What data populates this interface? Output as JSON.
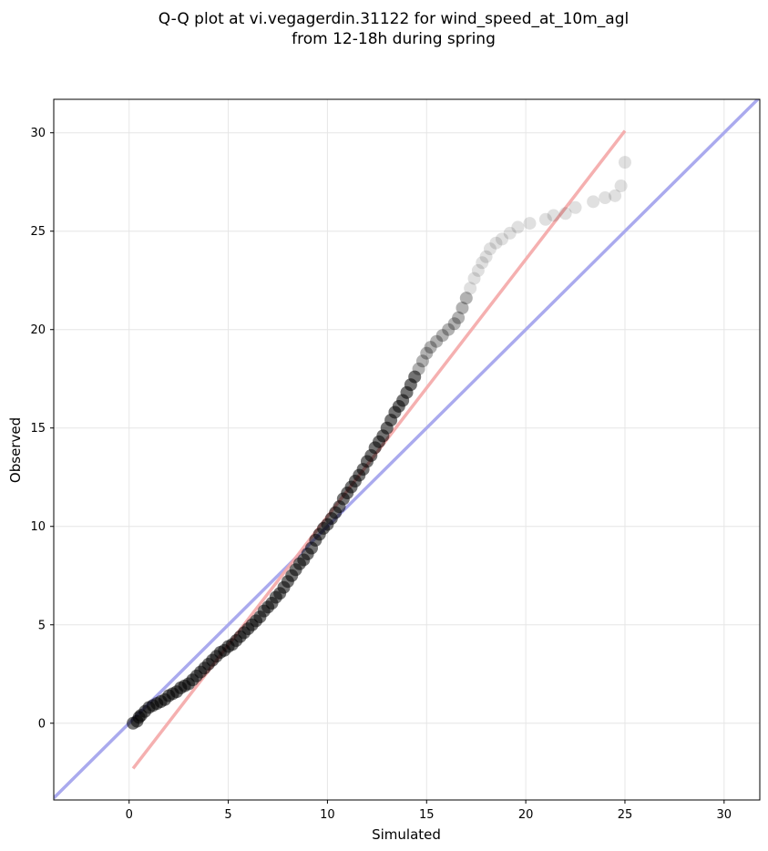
{
  "chart_data": {
    "type": "scatter",
    "title": [
      "Q-Q plot at vi.vegagerdin.31122 for wind_speed_at_10m_agl",
      "from 12-18h during spring"
    ],
    "xlabel": "Simulated",
    "ylabel": "Observed",
    "xlim": [
      -3.8,
      31.8
    ],
    "ylim": [
      -3.9,
      31.7
    ],
    "x_ticks": [
      0,
      5,
      10,
      15,
      20,
      25,
      30
    ],
    "y_ticks": [
      0,
      5,
      10,
      15,
      20,
      25,
      30
    ],
    "grid": true,
    "colors": {
      "points": "#000000",
      "identity_line": "#aaaaee",
      "fit_line": "#f4a7a7"
    },
    "reference_lines": [
      {
        "name": "identity",
        "x": [
          -3.8,
          31.8
        ],
        "y": [
          -3.8,
          31.8
        ]
      },
      {
        "name": "fit",
        "x": [
          0.2,
          25.0
        ],
        "y": [
          -2.3,
          30.1
        ]
      }
    ],
    "points": [
      [
        0.2,
        0.0
      ],
      [
        0.4,
        0.1
      ],
      [
        0.5,
        0.3
      ],
      [
        0.6,
        0.4
      ],
      [
        0.8,
        0.6
      ],
      [
        1.0,
        0.8
      ],
      [
        1.2,
        0.9
      ],
      [
        1.4,
        1.0
      ],
      [
        1.6,
        1.1
      ],
      [
        1.8,
        1.2
      ],
      [
        2.0,
        1.4
      ],
      [
        2.2,
        1.5
      ],
      [
        2.4,
        1.6
      ],
      [
        2.6,
        1.8
      ],
      [
        2.8,
        1.9
      ],
      [
        3.0,
        2.0
      ],
      [
        3.2,
        2.2
      ],
      [
        3.4,
        2.4
      ],
      [
        3.6,
        2.6
      ],
      [
        3.8,
        2.8
      ],
      [
        4.0,
        3.0
      ],
      [
        4.2,
        3.2
      ],
      [
        4.4,
        3.4
      ],
      [
        4.6,
        3.6
      ],
      [
        4.8,
        3.7
      ],
      [
        5.0,
        3.9
      ],
      [
        5.2,
        4.0
      ],
      [
        5.4,
        4.2
      ],
      [
        5.6,
        4.4
      ],
      [
        5.8,
        4.6
      ],
      [
        6.0,
        4.8
      ],
      [
        6.2,
        5.0
      ],
      [
        6.4,
        5.2
      ],
      [
        6.6,
        5.4
      ],
      [
        6.8,
        5.7
      ],
      [
        7.0,
        5.9
      ],
      [
        7.2,
        6.1
      ],
      [
        7.4,
        6.4
      ],
      [
        7.6,
        6.6
      ],
      [
        7.8,
        6.9
      ],
      [
        8.0,
        7.2
      ],
      [
        8.2,
        7.5
      ],
      [
        8.4,
        7.8
      ],
      [
        8.6,
        8.1
      ],
      [
        8.8,
        8.3
      ],
      [
        9.0,
        8.6
      ],
      [
        9.2,
        8.9
      ],
      [
        9.4,
        9.3
      ],
      [
        9.6,
        9.6
      ],
      [
        9.8,
        9.9
      ],
      [
        10.0,
        10.1
      ],
      [
        10.2,
        10.4
      ],
      [
        10.4,
        10.7
      ],
      [
        10.6,
        11.0
      ],
      [
        10.8,
        11.4
      ],
      [
        11.0,
        11.7
      ],
      [
        11.2,
        12.0
      ],
      [
        11.4,
        12.3
      ],
      [
        11.6,
        12.6
      ],
      [
        11.8,
        12.9
      ],
      [
        12.0,
        13.3
      ],
      [
        12.2,
        13.6
      ],
      [
        12.4,
        14.0
      ],
      [
        12.6,
        14.3
      ],
      [
        12.8,
        14.6
      ],
      [
        13.0,
        15.0
      ],
      [
        13.2,
        15.4
      ],
      [
        13.4,
        15.8
      ],
      [
        13.6,
        16.1
      ],
      [
        13.8,
        16.4
      ],
      [
        14.0,
        16.8
      ],
      [
        14.2,
        17.2
      ],
      [
        14.4,
        17.6
      ],
      [
        14.6,
        18.0
      ],
      [
        14.8,
        18.4
      ],
      [
        15.0,
        18.8
      ],
      [
        15.2,
        19.1
      ],
      [
        15.5,
        19.4
      ],
      [
        15.8,
        19.7
      ],
      [
        16.1,
        20.0
      ],
      [
        16.4,
        20.3
      ],
      [
        16.6,
        20.6
      ],
      [
        16.8,
        21.1
      ],
      [
        17.0,
        21.6
      ],
      [
        17.2,
        22.1
      ],
      [
        17.4,
        22.6
      ],
      [
        17.6,
        23.0
      ],
      [
        17.8,
        23.4
      ],
      [
        18.0,
        23.7
      ],
      [
        18.2,
        24.1
      ],
      [
        18.5,
        24.4
      ],
      [
        18.8,
        24.6
      ],
      [
        19.2,
        24.9
      ],
      [
        19.6,
        25.2
      ],
      [
        20.2,
        25.4
      ],
      [
        21.0,
        25.6
      ],
      [
        21.4,
        25.8
      ],
      [
        22.0,
        25.9
      ],
      [
        22.5,
        26.2
      ],
      [
        23.4,
        26.5
      ],
      [
        24.0,
        26.7
      ],
      [
        24.5,
        26.8
      ],
      [
        24.8,
        27.3
      ],
      [
        25.0,
        28.5
      ]
    ]
  }
}
